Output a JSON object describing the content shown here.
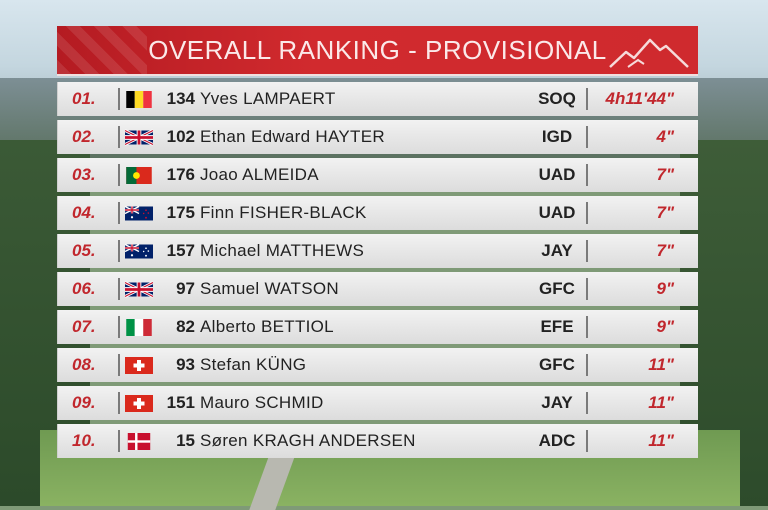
{
  "header": {
    "title": "OVERALL RANKING - PROVISIONAL"
  },
  "colors": {
    "accent": "#c1272d",
    "row_bg": "#e6e6e6"
  },
  "rows": [
    {
      "rank": "01.",
      "flag": "belgium-flag-icon",
      "number": "134",
      "name": "Yves LAMPAERT",
      "team": "SOQ",
      "time": "4h11'44\""
    },
    {
      "rank": "02.",
      "flag": "uk-flag-icon",
      "number": "102",
      "name": "Ethan Edward HAYTER",
      "team": "IGD",
      "time": "4\""
    },
    {
      "rank": "03.",
      "flag": "portugal-flag-icon",
      "number": "176",
      "name": "Joao ALMEIDA",
      "team": "UAD",
      "time": "7\""
    },
    {
      "rank": "04.",
      "flag": "new-zealand-flag-icon",
      "number": "175",
      "name": "Finn FISHER-BLACK",
      "team": "UAD",
      "time": "7\""
    },
    {
      "rank": "05.",
      "flag": "australia-flag-icon",
      "number": "157",
      "name": "Michael MATTHEWS",
      "team": "JAY",
      "time": "7\""
    },
    {
      "rank": "06.",
      "flag": "uk-flag-icon",
      "number": "97",
      "name": "Samuel WATSON",
      "team": "GFC",
      "time": "9\""
    },
    {
      "rank": "07.",
      "flag": "italy-flag-icon",
      "number": "82",
      "name": "Alberto BETTIOL",
      "team": "EFE",
      "time": "9\""
    },
    {
      "rank": "08.",
      "flag": "switzerland-flag-icon",
      "number": "93",
      "name": "Stefan KÜNG",
      "team": "GFC",
      "time": "11\""
    },
    {
      "rank": "09.",
      "flag": "switzerland-flag-icon",
      "number": "151",
      "name": "Mauro SCHMID",
      "team": "JAY",
      "time": "11\""
    },
    {
      "rank": "10.",
      "flag": "denmark-flag-icon",
      "number": "15",
      "name": "Søren KRAGH ANDERSEN",
      "team": "ADC",
      "time": "11\""
    }
  ]
}
